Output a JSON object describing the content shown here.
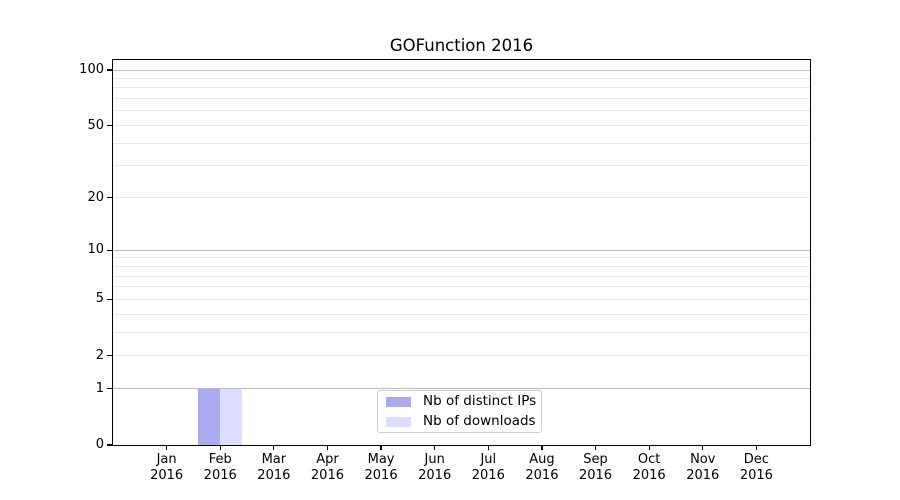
{
  "title": "GOFunction 2016",
  "chart_data": {
    "type": "bar",
    "title": "GOFunction 2016",
    "x_months": [
      "Jan",
      "Feb",
      "Mar",
      "Apr",
      "May",
      "Jun",
      "Jul",
      "Aug",
      "Sep",
      "Oct",
      "Nov",
      "Dec"
    ],
    "x_year": "2016",
    "categories": [
      "Jan 2016",
      "Feb 2016",
      "Mar 2016",
      "Apr 2016",
      "May 2016",
      "Jun 2016",
      "Jul 2016",
      "Aug 2016",
      "Sep 2016",
      "Oct 2016",
      "Nov 2016",
      "Dec 2016"
    ],
    "series": [
      {
        "name": "Nb of distinct IPs",
        "color": "#aaaaee",
        "values": [
          0,
          1,
          0,
          0,
          0,
          0,
          0,
          0,
          0,
          0,
          0,
          0
        ]
      },
      {
        "name": "Nb of downloads",
        "color": "#ddddff",
        "values": [
          0,
          1,
          0,
          0,
          0,
          0,
          0,
          0,
          0,
          0,
          0,
          0
        ]
      }
    ],
    "y_scale": "log1p",
    "ylim": [
      0,
      113
    ],
    "y_tick_values": [
      0,
      1,
      2,
      5,
      10,
      20,
      50,
      100
    ],
    "y_tick_labels": [
      "0",
      "1",
      "2",
      "5",
      "10",
      "20",
      "50",
      "100"
    ],
    "major_grid_values": [
      1,
      10,
      100
    ],
    "minor_grid_values": [
      2,
      3,
      4,
      5,
      6,
      7,
      8,
      9,
      20,
      30,
      40,
      50,
      60,
      70,
      80,
      90
    ],
    "legend_position": "lower center",
    "grid_on": true,
    "colors": {
      "axis": "#000000",
      "text": "#000000",
      "grid_major": "#bbbbbb",
      "grid_minor": "#e9e9e9",
      "background": "#ffffff",
      "legend_border": "#cccccc"
    }
  }
}
